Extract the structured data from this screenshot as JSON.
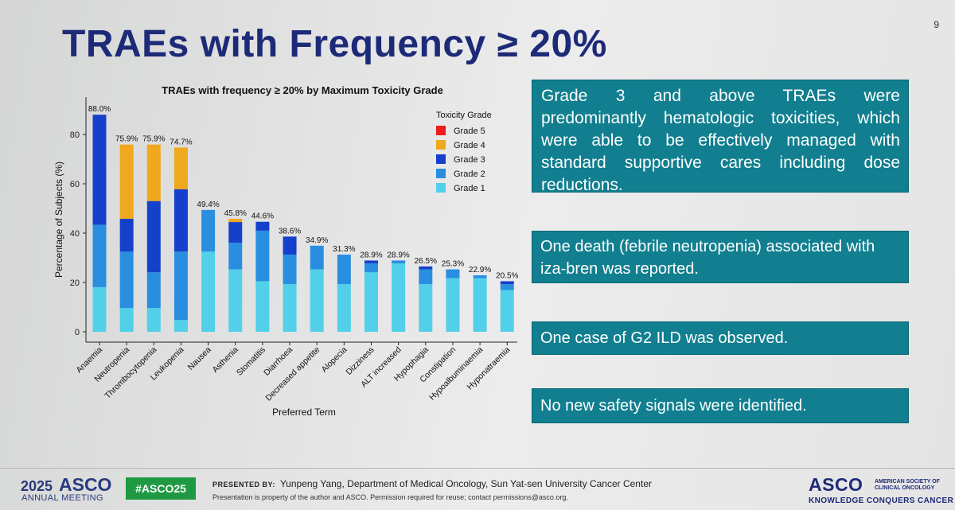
{
  "slide": {
    "page_number": "9",
    "title": "TRAEs with Frequency ≥ 20%"
  },
  "chart_data": {
    "type": "bar",
    "stacked": true,
    "title": "TRAEs with frequency ≥ 20% by Maximum Toxicity Grade",
    "xlabel": "Preferred Term",
    "ylabel": "Percentage of Subjects (%)",
    "ylim": [
      0,
      90
    ],
    "yticks": [
      0,
      20,
      40,
      60,
      80
    ],
    "legend_title": "Toxicity Grade",
    "legend_position": "top-right",
    "categories": [
      "Anaemia",
      "Neutropenia",
      "Thrombocytopenia",
      "Leukopenia",
      "Nausea",
      "Asthenia",
      "Stomatitis",
      "Diarrhoea",
      "Decreased appetite",
      "Alopecia",
      "Dizziness",
      "ALT increased",
      "Hypophagia",
      "Constipation",
      "Hypoalbuminaemia",
      "Hyponatraemia"
    ],
    "totals": [
      "88.0%",
      "75.9%",
      "75.9%",
      "74.7%",
      "49.4%",
      "45.8%",
      "44.6%",
      "38.6%",
      "34.9%",
      "31.3%",
      "28.9%",
      "28.9%",
      "26.5%",
      "25.3%",
      "22.9%",
      "20.5%"
    ],
    "series": [
      {
        "name": "Grade 1",
        "color": "#52d0ea",
        "values": [
          18.1,
          9.6,
          9.6,
          4.8,
          32.5,
          25.3,
          20.5,
          19.3,
          25.3,
          19.3,
          24.1,
          27.7,
          19.3,
          21.7,
          21.7,
          16.9
        ]
      },
      {
        "name": "Grade 2",
        "color": "#2a8ee0",
        "values": [
          25.3,
          22.9,
          14.5,
          27.7,
          16.9,
          10.8,
          20.5,
          12.0,
          9.6,
          12.0,
          3.6,
          1.2,
          6.0,
          3.6,
          1.2,
          2.4
        ]
      },
      {
        "name": "Grade 3",
        "color": "#1540cc",
        "values": [
          44.6,
          13.3,
          28.9,
          25.3,
          0,
          8.4,
          3.6,
          7.3,
          0,
          0,
          1.2,
          0,
          1.2,
          0,
          0,
          1.2
        ]
      },
      {
        "name": "Grade 4",
        "color": "#f0a81c",
        "values": [
          0,
          30.1,
          22.9,
          16.9,
          0,
          1.3,
          0,
          0,
          0,
          0,
          0,
          0,
          0,
          0,
          0,
          0
        ]
      },
      {
        "name": "Grade 5",
        "color": "#ee1c1c",
        "values": [
          0,
          0,
          0,
          0,
          0,
          0,
          0,
          0,
          0,
          0,
          0,
          0,
          0,
          0,
          0,
          0
        ]
      }
    ]
  },
  "info_boxes": {
    "grade3": "Grade 3 and above TRAEs were predominantly hematologic toxicities, which were able to be effectively managed with standard supportive cares including dose reductions.",
    "death": "One death (febrile neutropenia) associated with iza-bren was reported.",
    "ild": "One case of G2 ILD was observed.",
    "safety": "No new safety signals were identified."
  },
  "footer": {
    "meeting_year": "2025",
    "meeting_name": "ASCO",
    "meeting_sub": "ANNUAL MEETING",
    "hashtag": "#ASCO25",
    "presented_label": "PRESENTED BY:",
    "presenter": "Yunpeng Yang, Department of Medical Oncology, Sun Yat-sen University Cancer Center",
    "notice": "Presentation is property of the author and ASCO. Permission required for reuse; contact permissions@asco.org.",
    "asco_logo": "ASCO",
    "asco_society": "AMERICAN SOCIETY OF CLINICAL ONCOLOGY",
    "asco_tagline": "KNOWLEDGE CONQUERS CANCER"
  }
}
